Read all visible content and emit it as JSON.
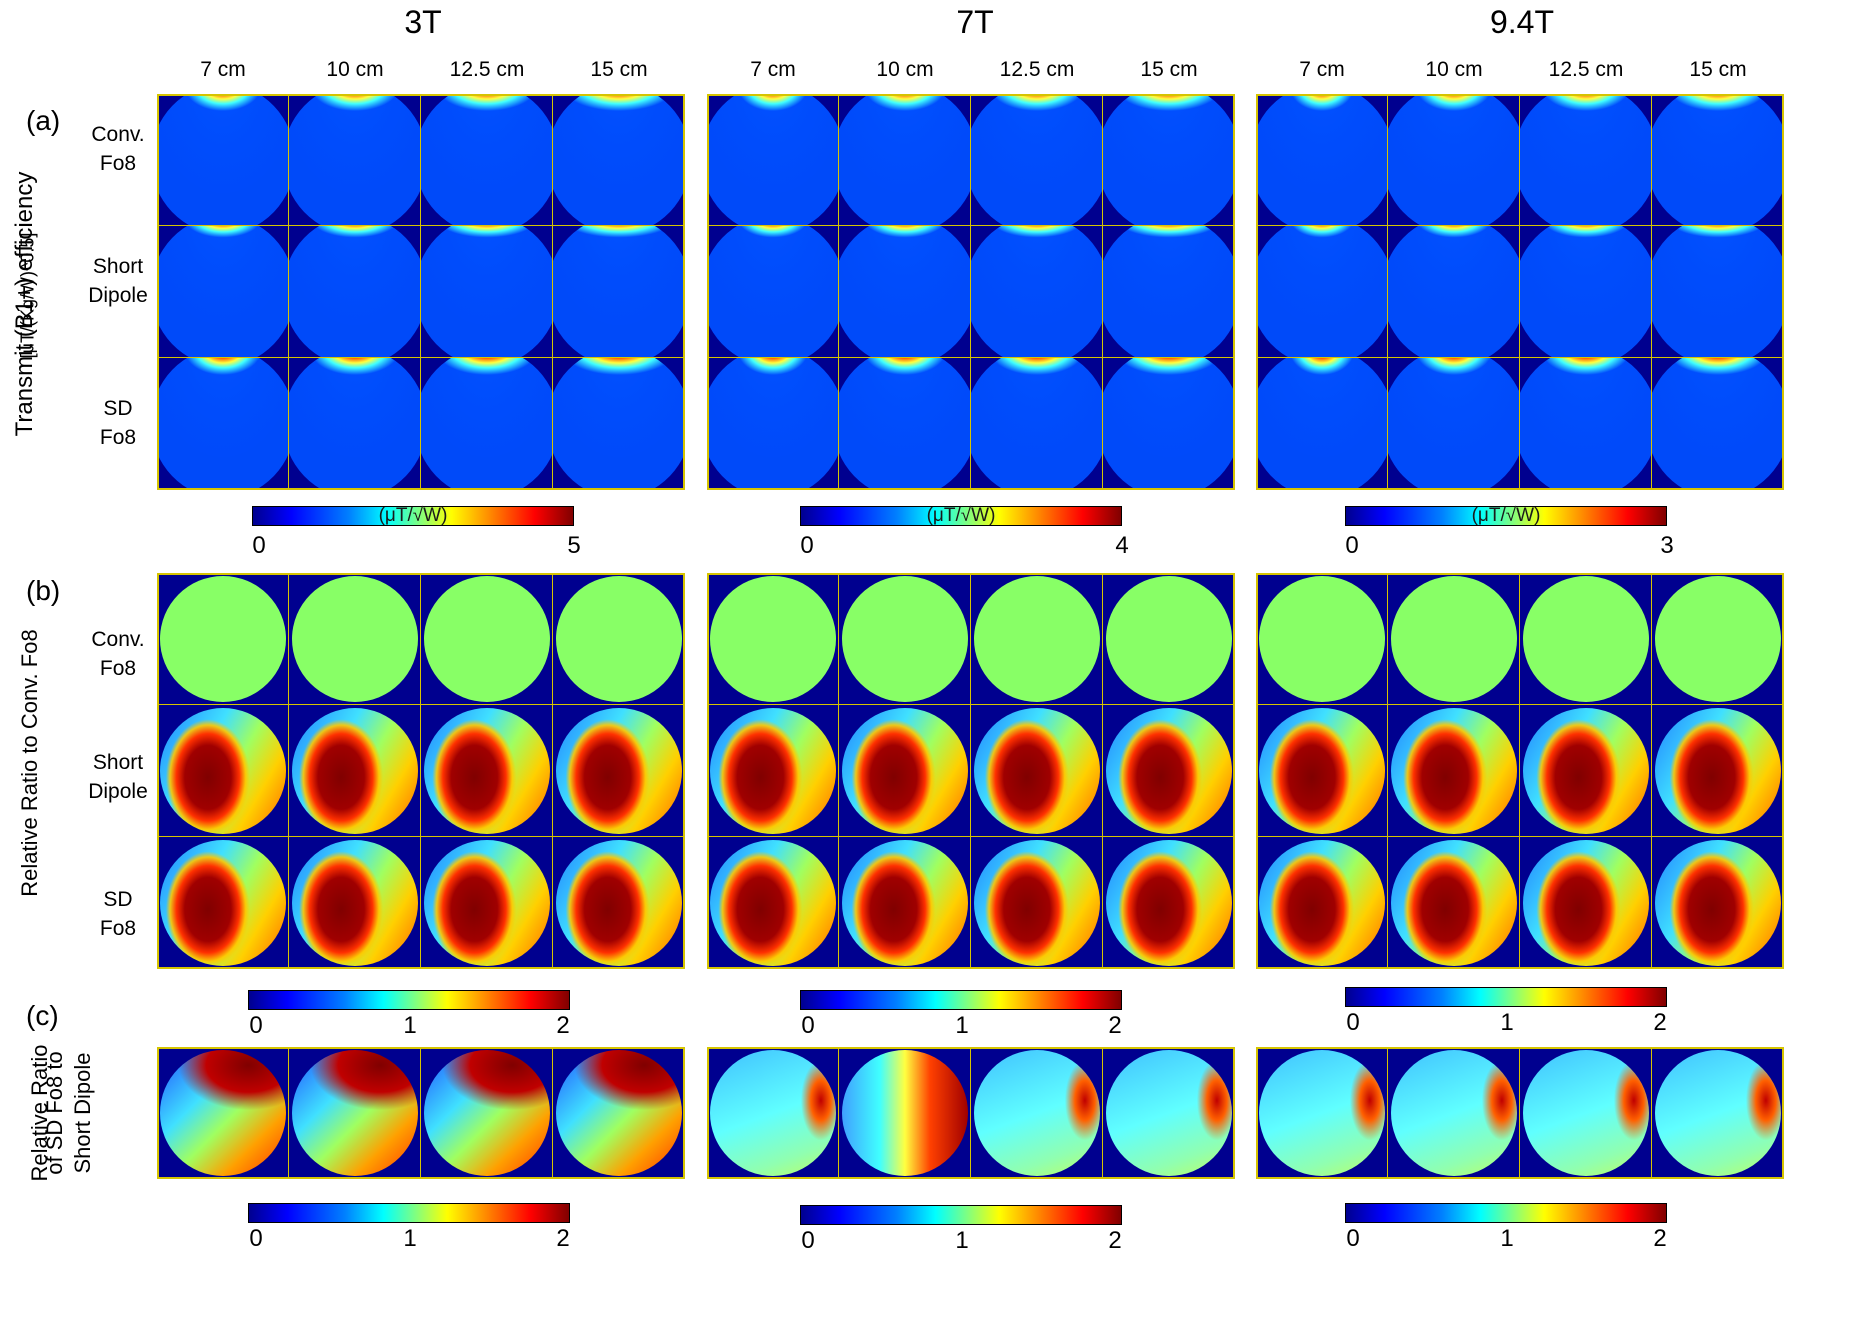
{
  "field_strengths": [
    "3T",
    "7T",
    "9.4T"
  ],
  "distances": [
    "7 cm",
    "10 cm",
    "12.5 cm",
    "15 cm"
  ],
  "panel_tags": [
    "(a)",
    "(b)",
    "(c)"
  ],
  "row_labels": {
    "conv_fo8": [
      "Conv.",
      "Fo8"
    ],
    "short_dipole": [
      "Short",
      "Dipole"
    ],
    "sd_fo8": [
      "SD",
      "Fo8"
    ]
  },
  "yaxis": {
    "a_line1": "Transmit (B1+) efficiency",
    "a_line2": "[μT/(Kg/W)^0.5]",
    "b": "Relative Ratio to Conv. Fo8",
    "c_line1": "Relative Ratio",
    "c_line2": "of SD Fo8 to",
    "c_line3": "Short Dipole"
  },
  "colorbars": {
    "a": [
      {
        "unit": "(μT/√W)",
        "min": "0",
        "max": "5"
      },
      {
        "unit": "(μT/√W)",
        "min": "0",
        "max": "4"
      },
      {
        "unit": "(μT/√W)",
        "min": "0",
        "max": "3"
      }
    ],
    "ratio_ticks": [
      "0",
      "1",
      "2"
    ]
  },
  "colormap": [
    "#00008f",
    "#0000ff",
    "#0080ff",
    "#00ffff",
    "#80ff80",
    "#ffff00",
    "#ff8000",
    "#ff0000",
    "#800000"
  ]
}
